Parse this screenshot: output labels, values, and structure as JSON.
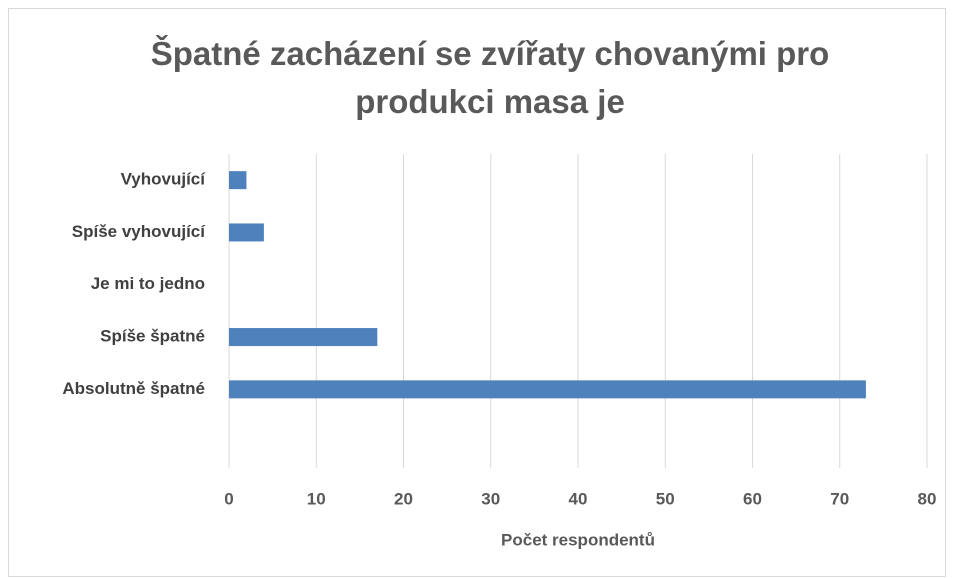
{
  "chart_data": {
    "type": "barh",
    "title": "Špatné zacházení se zvířaty chovanými pro produkci masa je",
    "categories": [
      "Vyhovující",
      "Spíše vyhovující",
      "Je mi to jedno",
      "Spíše špatné",
      "Absolutně špatné"
    ],
    "values": [
      2,
      4,
      0,
      17,
      73
    ],
    "color": "#4f81bd",
    "xlabel": "Počet respondentů",
    "xlim": [
      0,
      80
    ],
    "xticks": [
      0,
      10,
      20,
      30,
      40,
      50,
      60,
      70,
      80
    ],
    "grid": true
  }
}
